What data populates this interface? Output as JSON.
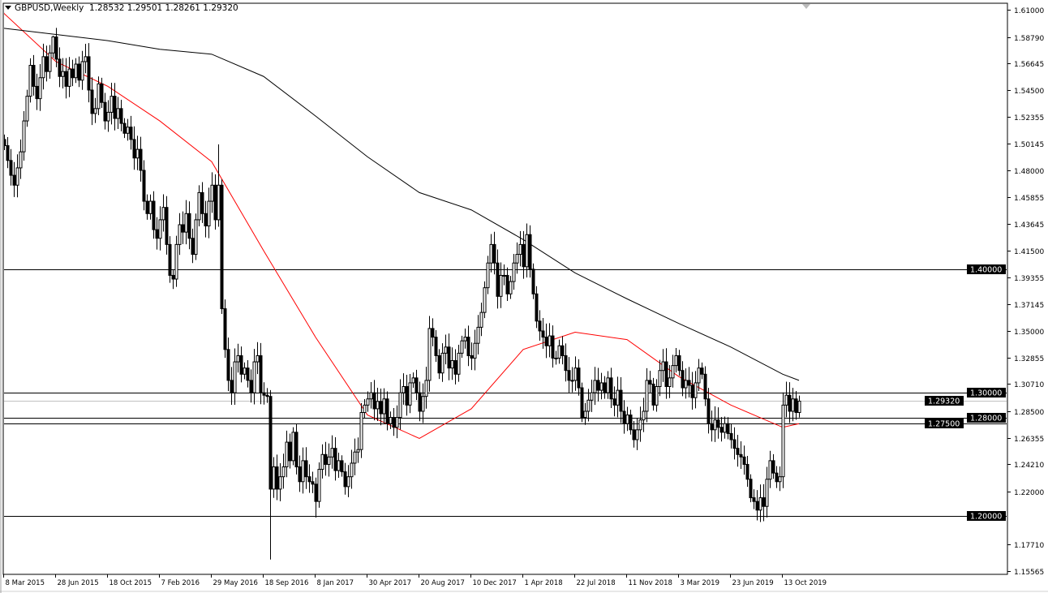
{
  "header": {
    "symbol_timeframe": "GBPUSD,Weekly",
    "ohlc_text": "1.28532 1.29501 1.28261 1.29320"
  },
  "colors": {
    "background": "#ffffff",
    "candle_bear": "#000000",
    "candle_bull": "#ffffff",
    "ma_fast": "#ff0000",
    "ma_slow": "#000000",
    "bid_line": "#c0c0c0",
    "level_line": "#000000"
  },
  "chart_data": {
    "type": "candlestick",
    "symbol": "GBPUSD",
    "timeframe": "Weekly",
    "first_bar": "8 Mar 2015",
    "ylim": [
      1.15565,
      1.61
    ],
    "grid": false,
    "y_ticks": [
      "1.61000",
      "1.58790",
      "1.56645",
      "1.54500",
      "1.52355",
      "1.50145",
      "1.48000",
      "1.45855",
      "1.43645",
      "1.41500",
      "1.39355",
      "1.37145",
      "1.35000",
      "1.32855",
      "1.30710",
      "1.28500",
      "1.26355",
      "1.24210",
      "1.22000",
      "1.17710",
      "1.15565"
    ],
    "x_ticks": [
      "8 Mar 2015",
      "28 Jun 2015",
      "18 Oct 2015",
      "7 Feb 2016",
      "29 May 2016",
      "18 Sep 2016",
      "8 Jan 2017",
      "30 Apr 2017",
      "20 Aug 2017",
      "10 Dec 2017",
      "1 Apr 2018",
      "22 Jul 2018",
      "11 Nov 2018",
      "3 Mar 2019",
      "23 Jun 2019",
      "13 Oct 2019"
    ],
    "close": [
      1.5,
      1.488,
      1.476,
      1.468,
      1.482,
      1.495,
      1.52,
      1.54,
      1.565,
      1.548,
      1.538,
      1.555,
      1.572,
      1.56,
      1.575,
      1.588,
      1.57,
      1.556,
      1.56,
      1.548,
      1.562,
      1.555,
      1.566,
      1.553,
      1.568,
      1.572,
      1.545,
      1.526,
      1.53,
      1.55,
      1.535,
      1.52,
      1.527,
      1.54,
      1.522,
      1.53,
      1.518,
      1.51,
      1.515,
      1.505,
      1.49,
      1.497,
      1.48,
      1.455,
      1.445,
      1.455,
      1.432,
      1.425,
      1.44,
      1.45,
      1.42,
      1.395,
      1.392,
      1.42,
      1.436,
      1.43,
      1.445,
      1.425,
      1.412,
      1.44,
      1.462,
      1.445,
      1.435,
      1.455,
      1.468,
      1.44,
      1.468,
      1.368,
      1.335,
      1.31,
      1.3,
      1.325,
      1.33,
      1.315,
      1.32,
      1.31,
      1.3,
      1.325,
      1.33,
      1.3,
      1.298,
      1.297,
      1.222,
      1.24,
      1.222,
      1.232,
      1.24,
      1.26,
      1.245,
      1.268,
      1.24,
      1.228,
      1.245,
      1.232,
      1.228,
      1.226,
      1.212,
      1.238,
      1.25,
      1.242,
      1.248,
      1.255,
      1.237,
      1.245,
      1.236,
      1.224,
      1.232,
      1.243,
      1.252,
      1.254,
      1.284,
      1.29,
      1.295,
      1.3,
      1.287,
      1.293,
      1.283,
      1.295,
      1.275,
      1.28,
      1.272,
      1.28,
      1.3,
      1.305,
      1.29,
      1.308,
      1.312,
      1.3,
      1.285,
      1.297,
      1.31,
      1.352,
      1.345,
      1.33,
      1.316,
      1.332,
      1.337,
      1.32,
      1.326,
      1.315,
      1.332,
      1.342,
      1.345,
      1.33,
      1.328,
      1.34,
      1.353,
      1.365,
      1.385,
      1.405,
      1.42,
      1.405,
      1.378,
      1.395,
      1.395,
      1.38,
      1.39,
      1.405,
      1.412,
      1.42,
      1.402,
      1.428,
      1.4,
      1.38,
      1.358,
      1.35,
      1.345,
      1.338,
      1.346,
      1.328,
      1.328,
      1.338,
      1.33,
      1.318,
      1.31,
      1.31,
      1.32,
      1.304,
      1.28,
      1.285,
      1.294,
      1.3,
      1.31,
      1.302,
      1.308,
      1.3,
      1.312,
      1.295,
      1.29,
      1.302,
      1.285,
      1.275,
      1.282,
      1.27,
      1.262,
      1.27,
      1.278,
      1.285,
      1.31,
      1.307,
      1.29,
      1.305,
      1.318,
      1.325,
      1.305,
      1.312,
      1.322,
      1.33,
      1.318,
      1.304,
      1.31,
      1.306,
      1.296,
      1.308,
      1.32,
      1.315,
      1.295,
      1.275,
      1.27,
      1.278,
      1.272,
      1.268,
      1.275,
      1.267,
      1.262,
      1.255,
      1.25,
      1.248,
      1.242,
      1.23,
      1.215,
      1.212,
      1.205,
      1.215,
      1.208,
      1.23,
      1.245,
      1.235,
      1.228,
      1.232,
      1.29,
      1.298,
      1.285,
      1.295,
      1.284,
      1.2932
    ],
    "wick_extremes": [
      {
        "bar": 15,
        "high": 1.589
      },
      {
        "bar": 52,
        "low": 1.384
      },
      {
        "bar": 66,
        "high": 1.501
      },
      {
        "bar": 82,
        "low": 1.165
      },
      {
        "bar": 96,
        "low": 1.199
      },
      {
        "bar": 161,
        "high": 1.437
      },
      {
        "bar": 234,
        "low": 1.196
      }
    ],
    "series": [
      {
        "type": "line",
        "color": "#ff0000",
        "values_at_x_ticks": [
          1.607,
          1.568,
          1.548,
          1.52,
          1.487,
          1.415,
          1.345,
          1.282,
          1.263,
          1.287,
          1.335,
          1.349,
          1.343,
          1.313,
          1.29,
          1.272
        ],
        "last": 1.275
      },
      {
        "type": "line",
        "color": "#000000",
        "values_at_x_ticks": [
          1.595,
          1.59,
          1.585,
          1.578,
          1.574,
          1.556,
          1.524,
          1.491,
          1.462,
          1.448,
          1.424,
          1.397,
          1.376,
          1.356,
          1.337,
          1.315
        ],
        "last": 1.31
      }
    ],
    "horizontal_levels": [
      {
        "price": 1.4,
        "label": "1.40000"
      },
      {
        "price": 1.3,
        "label": "1.30000"
      },
      {
        "price": 1.28,
        "label": "1.28000"
      },
      {
        "price": 1.275,
        "label": "1.27500"
      },
      {
        "price": 1.2,
        "label": "1.20000"
      }
    ],
    "bid": {
      "price": 1.2932,
      "label": "1.29320"
    }
  }
}
